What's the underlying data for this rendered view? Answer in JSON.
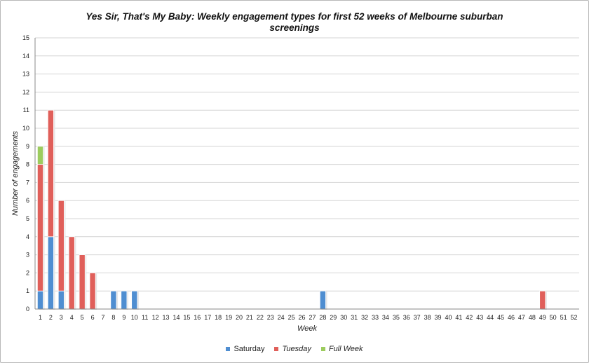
{
  "chart_data": {
    "type": "bar",
    "stacked": true,
    "title": "Yes Sir, That's My Baby: Weekly engagement types for first 52 weeks of Melbourne suburban screenings",
    "xlabel": "Week",
    "ylabel": "Number of engagements",
    "ylim": [
      0,
      15
    ],
    "yticks": [
      "0",
      "1",
      "2",
      "3",
      "4",
      "5",
      "6",
      "7",
      "8",
      "9",
      "10",
      "11",
      "12",
      "13",
      "14",
      "15"
    ],
    "categories": [
      "1",
      "2",
      "3",
      "4",
      "5",
      "6",
      "7",
      "8",
      "9",
      "10",
      "11",
      "12",
      "13",
      "14",
      "15",
      "16",
      "17",
      "18",
      "19",
      "20",
      "21",
      "22",
      "23",
      "24",
      "25",
      "26",
      "27",
      "28",
      "29",
      "30",
      "31",
      "32",
      "33",
      "34",
      "35",
      "36",
      "37",
      "38",
      "39",
      "40",
      "41",
      "42",
      "43",
      "44",
      "45",
      "46",
      "47",
      "48",
      "49",
      "50",
      "51",
      "52"
    ],
    "grid": true,
    "legend_position": "bottom",
    "series": [
      {
        "name": "Saturday",
        "color": "#4f8ed1",
        "values": [
          1,
          4,
          1,
          0,
          0,
          0,
          0,
          1,
          1,
          1,
          0,
          0,
          0,
          0,
          0,
          0,
          0,
          0,
          0,
          0,
          0,
          0,
          0,
          0,
          0,
          0,
          0,
          1,
          0,
          0,
          0,
          0,
          0,
          0,
          0,
          0,
          0,
          0,
          0,
          0,
          0,
          0,
          0,
          0,
          0,
          0,
          0,
          0,
          0,
          0,
          0,
          0
        ]
      },
      {
        "name": "Tuesday",
        "color": "#e05f5a",
        "values": [
          7,
          7,
          5,
          4,
          3,
          2,
          0,
          0,
          0,
          0,
          0,
          0,
          0,
          0,
          0,
          0,
          0,
          0,
          0,
          0,
          0,
          0,
          0,
          0,
          0,
          0,
          0,
          0,
          0,
          0,
          0,
          0,
          0,
          0,
          0,
          0,
          0,
          0,
          0,
          0,
          0,
          0,
          0,
          0,
          0,
          0,
          0,
          0,
          1,
          0,
          0,
          0
        ]
      },
      {
        "name": "Full Week",
        "color": "#9ccc5e",
        "values": [
          1,
          0,
          0,
          0,
          0,
          0,
          0,
          0,
          0,
          0,
          0,
          0,
          0,
          0,
          0,
          0,
          0,
          0,
          0,
          0,
          0,
          0,
          0,
          0,
          0,
          0,
          0,
          0,
          0,
          0,
          0,
          0,
          0,
          0,
          0,
          0,
          0,
          0,
          0,
          0,
          0,
          0,
          0,
          0,
          0,
          0,
          0,
          0,
          0,
          0,
          0,
          0
        ]
      }
    ]
  }
}
